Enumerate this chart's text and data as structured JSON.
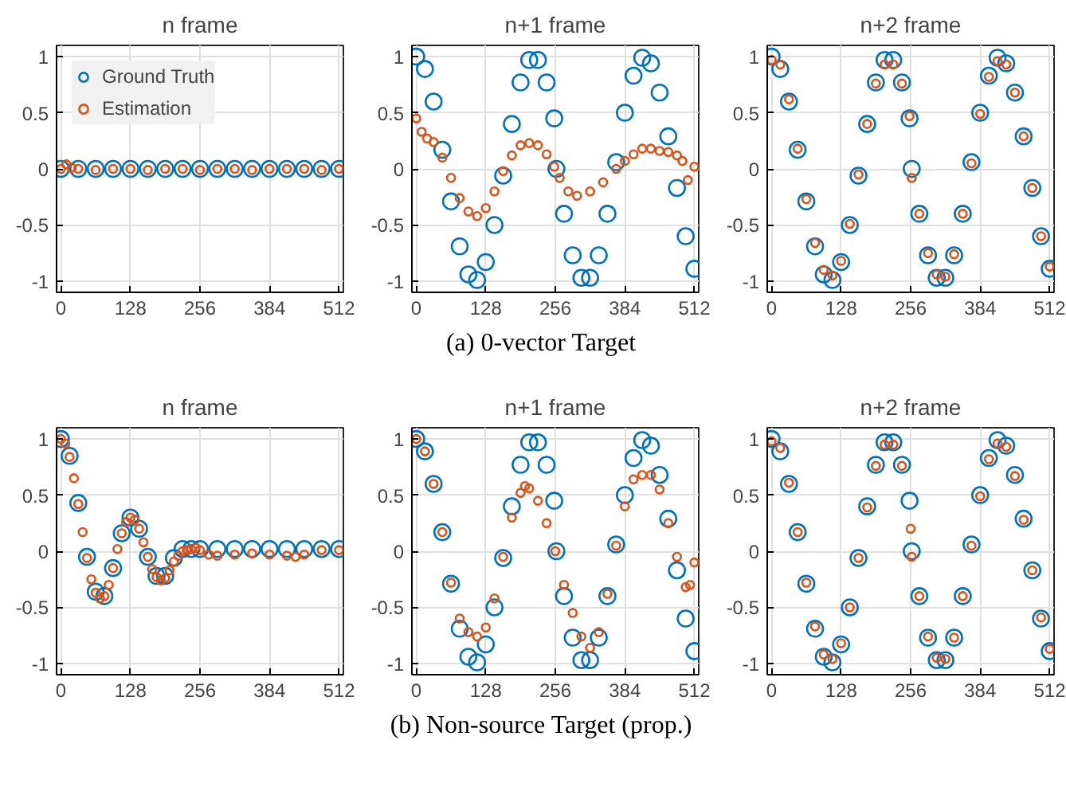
{
  "chart_data": [
    {
      "type": "scatter",
      "title": "n frame",
      "xlim": [
        -8,
        520
      ],
      "ylim": [
        -1.1,
        1.1
      ],
      "xticks": [
        0,
        128,
        256,
        384,
        512
      ],
      "yticks": [
        -1,
        -0.5,
        0,
        0.5,
        1
      ],
      "grid": true,
      "marker": "circle",
      "legend": "top left",
      "series": [
        {
          "name": "Ground Truth",
          "color": "#0072bd",
          "x": [
            0,
            32,
            64,
            96,
            128,
            160,
            192,
            224,
            256,
            288,
            320,
            352,
            384,
            416,
            448,
            480,
            512
          ],
          "values": [
            0,
            0,
            0,
            0,
            0,
            0,
            0,
            0,
            0,
            0,
            0,
            0,
            0,
            0,
            0,
            0,
            0
          ]
        },
        {
          "name": "Estimation",
          "color": "#d95319",
          "x": [
            0,
            10,
            20,
            32,
            64,
            96,
            128,
            160,
            192,
            224,
            256,
            288,
            320,
            352,
            384,
            416,
            448,
            480,
            512
          ],
          "values": [
            0,
            0.04,
            0.01,
            0,
            -0.01,
            0,
            0,
            -0.01,
            0,
            0,
            -0.01,
            0,
            0,
            -0.01,
            0,
            0,
            0,
            -0.01,
            0
          ]
        }
      ]
    },
    {
      "type": "scatter",
      "title": "n+1 frame",
      "xlim": [
        -8,
        520
      ],
      "ylim": [
        -1.1,
        1.1
      ],
      "xticks": [
        0,
        128,
        256,
        384,
        512
      ],
      "yticks": [
        -1,
        -0.5,
        0,
        0.5,
        1
      ],
      "grid": true,
      "marker": "circle",
      "annotations": [
        "(a) 0-vector Target"
      ],
      "series": [
        {
          "color": "#0072bd",
          "x": [
            0,
            16,
            32,
            48,
            64,
            80,
            96,
            112,
            128,
            144,
            160,
            176,
            192,
            208,
            224,
            240,
            254,
            258,
            272,
            288,
            304,
            320,
            336,
            352,
            368,
            384,
            400,
            416,
            432,
            448,
            464,
            480,
            496,
            512
          ],
          "values": [
            1,
            0.89,
            0.6,
            0.17,
            -0.29,
            -0.69,
            -0.94,
            -0.99,
            -0.83,
            -0.5,
            -0.06,
            0.4,
            0.77,
            0.97,
            0.97,
            0.77,
            0.45,
            0,
            -0.4,
            -0.77,
            -0.97,
            -0.97,
            -0.77,
            -0.4,
            0.06,
            0.5,
            0.83,
            0.99,
            0.94,
            0.68,
            0.29,
            -0.17,
            -0.6,
            -0.89
          ]
        },
        {
          "color": "#d95319",
          "x": [
            0,
            10,
            20,
            32,
            48,
            64,
            80,
            96,
            112,
            128,
            144,
            160,
            176,
            192,
            208,
            224,
            240,
            254,
            264,
            280,
            296,
            320,
            344,
            368,
            384,
            400,
            416,
            432,
            448,
            464,
            480,
            490,
            500,
            512
          ],
          "values": [
            0.45,
            0.33,
            0.27,
            0.24,
            0.1,
            -0.08,
            -0.26,
            -0.38,
            -0.42,
            -0.35,
            -0.2,
            -0.02,
            0.12,
            0.21,
            0.23,
            0.21,
            0.13,
            0.02,
            -0.08,
            -0.2,
            -0.24,
            -0.2,
            -0.12,
            0,
            0.07,
            0.13,
            0.18,
            0.18,
            0.16,
            0.15,
            0.12,
            0.07,
            -0.1,
            0.02
          ]
        }
      ]
    },
    {
      "type": "scatter",
      "title": "n+2 frame",
      "xlim": [
        -8,
        520
      ],
      "ylim": [
        -1.1,
        1.1
      ],
      "xticks": [
        0,
        128,
        256,
        384,
        512
      ],
      "yticks": [
        -1,
        -0.5,
        0,
        0.5,
        1
      ],
      "grid": true,
      "marker": "circle",
      "series": [
        {
          "color": "#0072bd",
          "x": [
            0,
            16,
            32,
            48,
            64,
            80,
            96,
            112,
            128,
            144,
            160,
            176,
            192,
            208,
            224,
            240,
            254,
            258,
            272,
            288,
            304,
            320,
            336,
            352,
            368,
            384,
            400,
            416,
            432,
            448,
            464,
            480,
            496,
            512
          ],
          "values": [
            1,
            0.89,
            0.6,
            0.17,
            -0.29,
            -0.69,
            -0.94,
            -0.99,
            -0.83,
            -0.5,
            -0.06,
            0.4,
            0.77,
            0.97,
            0.97,
            0.77,
            0.45,
            0,
            -0.4,
            -0.77,
            -0.97,
            -0.97,
            -0.77,
            -0.4,
            0.06,
            0.5,
            0.83,
            0.99,
            0.94,
            0.68,
            0.29,
            -0.17,
            -0.6,
            -0.89
          ]
        },
        {
          "color": "#d95319",
          "x": [
            0,
            16,
            32,
            48,
            64,
            80,
            96,
            112,
            128,
            144,
            160,
            176,
            192,
            208,
            224,
            240,
            254,
            258,
            272,
            288,
            304,
            320,
            336,
            352,
            368,
            384,
            400,
            416,
            432,
            448,
            464,
            480,
            496,
            512
          ],
          "values": [
            0.97,
            0.93,
            0.62,
            0.18,
            -0.27,
            -0.66,
            -0.9,
            -0.95,
            -0.82,
            -0.49,
            -0.05,
            0.4,
            0.76,
            0.93,
            0.93,
            0.76,
            0.47,
            -0.08,
            -0.4,
            -0.75,
            -0.94,
            -0.96,
            -0.76,
            -0.4,
            0.05,
            0.49,
            0.82,
            0.96,
            0.93,
            0.68,
            0.29,
            -0.17,
            -0.6,
            -0.87
          ]
        }
      ]
    },
    {
      "type": "scatter",
      "title": "n frame",
      "xlim": [
        -8,
        520
      ],
      "ylim": [
        -1.1,
        1.1
      ],
      "xticks": [
        0,
        128,
        256,
        384,
        512
      ],
      "yticks": [
        -1,
        -0.5,
        0,
        0.5,
        1
      ],
      "grid": true,
      "marker": "circle",
      "series": [
        {
          "color": "#0072bd",
          "x": [
            0,
            16,
            32,
            48,
            64,
            80,
            96,
            112,
            128,
            144,
            160,
            176,
            192,
            208,
            224,
            240,
            256,
            288,
            320,
            352,
            384,
            416,
            448,
            480,
            512
          ],
          "values": [
            1,
            0.85,
            0.43,
            -0.05,
            -0.36,
            -0.4,
            -0.15,
            0.16,
            0.3,
            0.2,
            -0.05,
            -0.22,
            -0.22,
            -0.06,
            0.02,
            0.02,
            0.02,
            0.02,
            0.02,
            0.02,
            0.02,
            0.02,
            0.02,
            0.02,
            0.02
          ]
        },
        {
          "color": "#d95319",
          "x": [
            0,
            8,
            16,
            24,
            32,
            40,
            48,
            56,
            64,
            72,
            80,
            88,
            96,
            104,
            112,
            120,
            128,
            136,
            144,
            152,
            160,
            168,
            176,
            184,
            192,
            200,
            208,
            216,
            224,
            232,
            240,
            248,
            256,
            272,
            288,
            320,
            352,
            384,
            416,
            432,
            448,
            480,
            512
          ],
          "values": [
            1,
            0.96,
            0.84,
            0.65,
            0.42,
            0.17,
            -0.06,
            -0.25,
            -0.37,
            -0.42,
            -0.4,
            -0.3,
            -0.15,
            0.02,
            0.16,
            0.26,
            0.3,
            0.28,
            0.2,
            0.08,
            -0.05,
            -0.16,
            -0.23,
            -0.26,
            -0.24,
            -0.17,
            -0.09,
            -0.04,
            0,
            0.01,
            0.02,
            0.03,
            0.01,
            -0.03,
            -0.04,
            -0.03,
            -0.02,
            -0.03,
            -0.04,
            -0.05,
            -0.03,
            0.01,
            0.01
          ]
        }
      ]
    },
    {
      "type": "scatter",
      "title": "n+1 frame",
      "xlim": [
        -8,
        520
      ],
      "ylim": [
        -1.1,
        1.1
      ],
      "xticks": [
        0,
        128,
        256,
        384,
        512
      ],
      "yticks": [
        -1,
        -0.5,
        0,
        0.5,
        1
      ],
      "grid": true,
      "marker": "circle",
      "annotations": [
        "(b) Non-source Target (prop.)"
      ],
      "series": [
        {
          "color": "#0072bd",
          "x": [
            0,
            16,
            32,
            48,
            64,
            80,
            96,
            112,
            128,
            144,
            160,
            176,
            192,
            208,
            224,
            240,
            254,
            258,
            272,
            288,
            304,
            320,
            336,
            352,
            368,
            384,
            400,
            416,
            432,
            448,
            464,
            480,
            496,
            512
          ],
          "values": [
            1,
            0.89,
            0.6,
            0.17,
            -0.29,
            -0.69,
            -0.94,
            -0.99,
            -0.83,
            -0.5,
            -0.06,
            0.4,
            0.77,
            0.97,
            0.97,
            0.77,
            0.45,
            0,
            -0.4,
            -0.77,
            -0.97,
            -0.97,
            -0.77,
            -0.4,
            0.06,
            0.5,
            0.83,
            0.99,
            0.94,
            0.68,
            0.29,
            -0.17,
            -0.6,
            -0.89
          ]
        },
        {
          "color": "#d95319",
          "x": [
            0,
            16,
            32,
            48,
            64,
            80,
            96,
            112,
            128,
            144,
            160,
            176,
            192,
            200,
            208,
            224,
            240,
            256,
            272,
            288,
            304,
            320,
            336,
            352,
            368,
            384,
            400,
            416,
            432,
            448,
            464,
            480,
            496,
            504,
            512
          ],
          "values": [
            1,
            0.89,
            0.6,
            0.17,
            -0.28,
            -0.6,
            -0.72,
            -0.76,
            -0.68,
            -0.42,
            -0.05,
            0.3,
            0.52,
            0.58,
            0.56,
            0.45,
            0.25,
            0,
            -0.3,
            -0.55,
            -0.76,
            -0.86,
            -0.72,
            -0.38,
            0.05,
            0.4,
            0.64,
            0.68,
            0.68,
            0.55,
            0.25,
            -0.05,
            -0.32,
            -0.3,
            -0.1
          ]
        }
      ]
    },
    {
      "type": "scatter",
      "title": "n+2 frame",
      "xlim": [
        -8,
        520
      ],
      "ylim": [
        -1.1,
        1.1
      ],
      "xticks": [
        0,
        128,
        256,
        384,
        512
      ],
      "yticks": [
        -1,
        -0.5,
        0,
        0.5,
        1
      ],
      "grid": true,
      "marker": "circle",
      "series": [
        {
          "color": "#0072bd",
          "x": [
            0,
            16,
            32,
            48,
            64,
            80,
            96,
            112,
            128,
            144,
            160,
            176,
            192,
            208,
            224,
            240,
            254,
            258,
            272,
            288,
            304,
            320,
            336,
            352,
            368,
            384,
            400,
            416,
            432,
            448,
            464,
            480,
            496,
            512
          ],
          "values": [
            1,
            0.89,
            0.6,
            0.17,
            -0.29,
            -0.69,
            -0.94,
            -0.99,
            -0.83,
            -0.5,
            -0.06,
            0.4,
            0.77,
            0.97,
            0.97,
            0.77,
            0.45,
            0,
            -0.4,
            -0.77,
            -0.97,
            -0.97,
            -0.77,
            -0.4,
            0.06,
            0.5,
            0.83,
            0.99,
            0.94,
            0.68,
            0.29,
            -0.17,
            -0.6,
            -0.89
          ]
        },
        {
          "color": "#d95319",
          "x": [
            0,
            16,
            32,
            48,
            64,
            80,
            96,
            112,
            128,
            144,
            160,
            176,
            192,
            208,
            224,
            240,
            256,
            258,
            272,
            288,
            304,
            320,
            336,
            352,
            368,
            384,
            400,
            416,
            432,
            448,
            464,
            480,
            496,
            512
          ],
          "values": [
            0.98,
            0.92,
            0.61,
            0.17,
            -0.28,
            -0.67,
            -0.92,
            -0.96,
            -0.82,
            -0.5,
            -0.06,
            0.39,
            0.76,
            0.95,
            0.95,
            0.76,
            0.2,
            -0.05,
            -0.4,
            -0.76,
            -0.95,
            -0.96,
            -0.77,
            -0.4,
            0.05,
            0.49,
            0.82,
            0.96,
            0.93,
            0.67,
            0.28,
            -0.17,
            -0.59,
            -0.87
          ]
        }
      ]
    }
  ]
}
